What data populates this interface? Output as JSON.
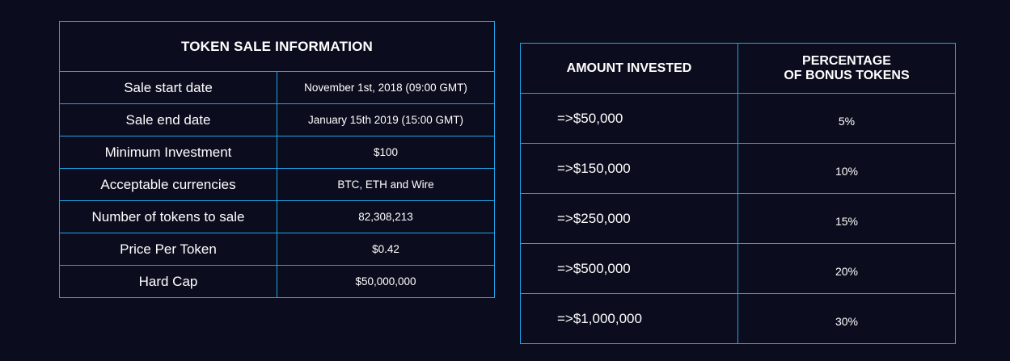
{
  "sale_info": {
    "title": "TOKEN SALE INFORMATION",
    "rows": [
      {
        "label": "Sale start date",
        "value": "November 1st, 2018 (09:00 GMT)"
      },
      {
        "label": "Sale end date",
        "value": "January 15th 2019 (15:00 GMT)"
      },
      {
        "label": "Minimum Investment",
        "value": "$100"
      },
      {
        "label": "Acceptable currencies",
        "value": "BTC, ETH and Wire"
      },
      {
        "label": "Number of tokens to sale",
        "value": "82,308,213"
      },
      {
        "label": "Price Per Token",
        "value": "$0.42"
      },
      {
        "label": "Hard Cap",
        "value": "$50,000,000"
      }
    ]
  },
  "bonus": {
    "header_amount": "AMOUNT INVESTED",
    "header_percentage_line1": "PERCENTAGE",
    "header_percentage_line2": "OF BONUS TOKENS",
    "rows": [
      {
        "amount": "=>$50,000",
        "percent": "5%"
      },
      {
        "amount": "=>$150,000",
        "percent": "10%"
      },
      {
        "amount": "=>$250,000",
        "percent": "15%"
      },
      {
        "amount": "=>$500,000",
        "percent": "20%"
      },
      {
        "amount": "=>$1,000,000",
        "percent": "30%"
      }
    ]
  },
  "colors": {
    "background": "#0b0d1e",
    "border": "#1fa3e6",
    "text": "#ffffff"
  }
}
